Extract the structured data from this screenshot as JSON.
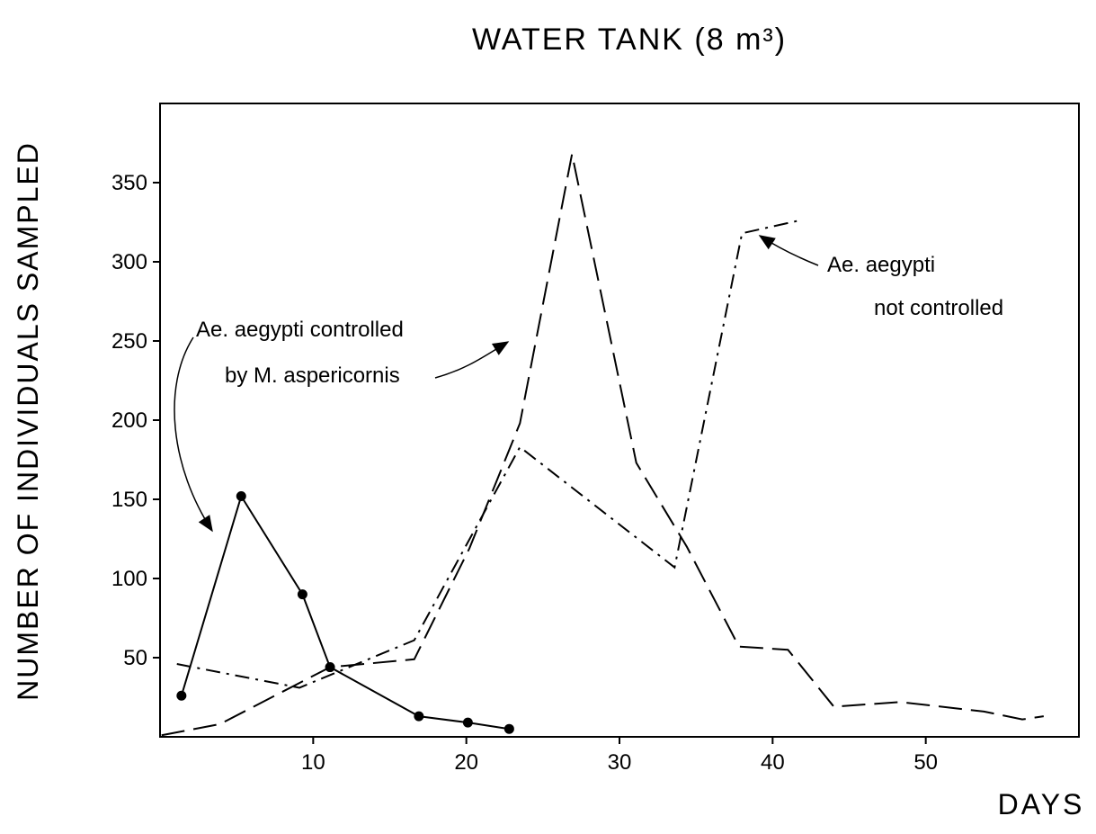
{
  "chart_data": {
    "type": "line",
    "title": "WATER TANK (8 m³)",
    "x_label": "DAYS",
    "y_label": "NUMBER OF INDIVIDUALS SAMPLED",
    "xlim": [
      0,
      60
    ],
    "ylim": [
      0,
      400
    ],
    "xticks": [
      10,
      20,
      30,
      40,
      50
    ],
    "yticks": [
      50,
      100,
      150,
      200,
      250,
      300,
      350
    ],
    "series": [
      {
        "color": "#000000",
        "style": "solid",
        "marker": "circle",
        "x": [
          1.4,
          5.3,
          9.3,
          11.1,
          16.9,
          20.1,
          22.8
        ],
        "values": [
          26,
          152,
          90,
          44,
          13,
          9,
          5
        ]
      },
      {
        "color": "#000000",
        "style": "dashed",
        "marker": "none",
        "x": [
          0.1,
          3.9,
          11.1,
          16.6,
          20.2,
          23.5,
          26.9,
          31.1,
          34.4,
          37.8,
          41.0,
          44.0,
          48.3,
          53.8,
          56.3,
          57.7
        ],
        "values": [
          1,
          8,
          44,
          49,
          119,
          198,
          368,
          173,
          120,
          57,
          55,
          19,
          22,
          16,
          11,
          13
        ]
      },
      {
        "color": "#000000",
        "style": "dashdot",
        "marker": "none",
        "x": [
          1.1,
          9.1,
          16.6,
          23.5,
          33.6,
          38.0,
          41.7
        ],
        "values": [
          46,
          31,
          61,
          183,
          107,
          318,
          326
        ]
      }
    ],
    "annotations": [
      "Ae. aegypti  controlled",
      "by  M. aspericornis",
      "Ae. aegypti",
      "not  controlled"
    ]
  }
}
